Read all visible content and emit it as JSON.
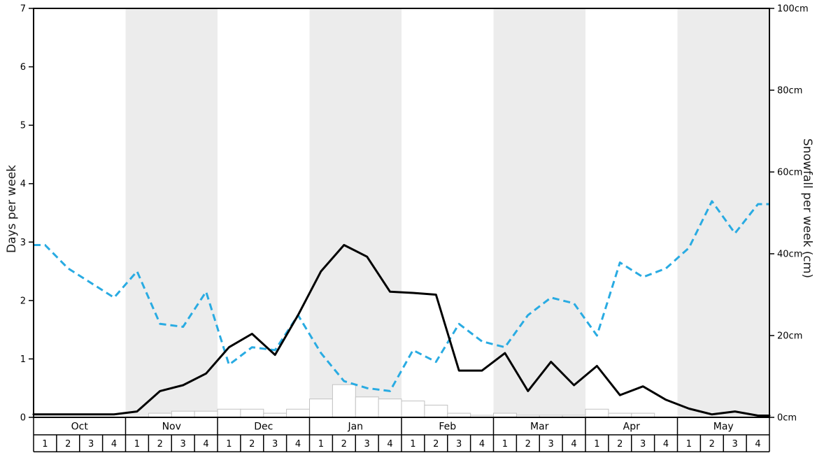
{
  "chart_data": {
    "type": "line",
    "title": "",
    "left_axis": {
      "label": "Days per week",
      "min": 0,
      "max": 7,
      "ticks": [
        "0",
        "1",
        "2",
        "3",
        "4",
        "5",
        "6",
        "7"
      ],
      "tick_values": [
        0,
        1,
        2,
        3,
        4,
        5,
        6,
        7
      ]
    },
    "right_axis": {
      "label": "Snowfall per week (cm)",
      "min": 0,
      "max": 100,
      "ticks": [
        "0cm",
        "20cm",
        "40cm",
        "60cm",
        "80cm",
        "100cm"
      ],
      "tick_values": [
        0,
        20,
        40,
        60,
        80,
        100
      ]
    },
    "months": [
      "Oct",
      "Nov",
      "Dec",
      "Jan",
      "Feb",
      "Mar",
      "Apr",
      "May"
    ],
    "weeks_per_month": [
      "1",
      "2",
      "3",
      "4"
    ],
    "shaded_months": [
      "Nov",
      "Jan",
      "Mar",
      "May"
    ],
    "band_color": "#ececec",
    "series": [
      {
        "name": "blue-dashed-line",
        "style": "dashed",
        "color": "#29abe2",
        "axis": "left",
        "values": [
          2.95,
          2.55,
          2.3,
          2.05,
          2.5,
          1.6,
          1.55,
          2.15,
          0.9,
          1.2,
          1.15,
          1.75,
          1.1,
          0.62,
          0.5,
          0.45,
          1.15,
          0.95,
          1.6,
          1.3,
          1.2,
          1.75,
          2.05,
          1.95,
          1.4,
          2.65,
          2.4,
          2.55,
          2.9,
          3.7,
          3.15,
          3.65
        ]
      },
      {
        "name": "black-solid-line",
        "style": "solid",
        "color": "#000000",
        "axis": "left",
        "values": [
          0.05,
          0.05,
          0.05,
          0.05,
          0.1,
          0.45,
          0.55,
          0.75,
          1.2,
          1.43,
          1.07,
          1.75,
          2.5,
          2.95,
          2.75,
          2.15,
          2.13,
          2.1,
          0.8,
          0.8,
          1.1,
          0.45,
          0.95,
          0.55,
          0.88,
          0.38,
          0.53,
          0.3,
          0.15,
          0.05,
          0.1,
          0.03
        ]
      }
    ],
    "bars": {
      "name": "snowfall-bars-cm",
      "axis": "right",
      "fill": "#ffffff",
      "stroke": "#c2c2c2",
      "values_cm": [
        0,
        0,
        0,
        0,
        0,
        1,
        1.5,
        1.5,
        2,
        2,
        1,
        2,
        4.5,
        8,
        5,
        4.5,
        4,
        3,
        1,
        0.5,
        1,
        0.5,
        0.5,
        0.5,
        2,
        1,
        1,
        0,
        0,
        0,
        0,
        0
      ]
    },
    "layout_hints": {
      "grid": "off",
      "legend": "none",
      "alternating_month_bands": true
    }
  }
}
